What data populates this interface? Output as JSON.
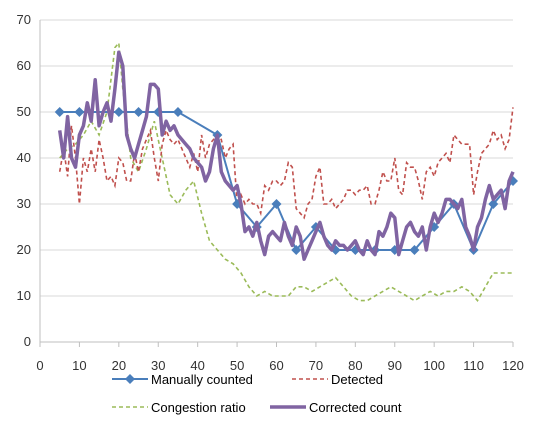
{
  "chart_data": {
    "type": "line",
    "title": "",
    "xlabel": "",
    "ylabel": "",
    "xlim": [
      0,
      120
    ],
    "ylim": [
      0,
      70
    ],
    "x_ticks": [
      0,
      10,
      20,
      30,
      40,
      50,
      60,
      70,
      80,
      90,
      100,
      110,
      120
    ],
    "y_ticks": [
      0,
      10,
      20,
      30,
      40,
      50,
      60,
      70
    ],
    "grid": "horizontal",
    "legend_position": "bottom",
    "series": [
      {
        "name": "Manually counted",
        "color": "#4A7EBB",
        "style": "solid-marker",
        "x": [
          5,
          10,
          20,
          25,
          30,
          35,
          45,
          50,
          55,
          60,
          65,
          70,
          75,
          80,
          85,
          90,
          95,
          100,
          105,
          110,
          115,
          120
        ],
        "y": [
          50,
          50,
          50,
          50,
          50,
          50,
          45,
          30,
          25,
          30,
          20,
          25,
          20,
          20,
          20,
          20,
          20,
          25,
          30,
          20,
          30,
          35
        ]
      },
      {
        "name": "Detected",
        "color": "#C0504D",
        "style": "dashed",
        "x": [
          5,
          6,
          7,
          8,
          9,
          10,
          11,
          12,
          13,
          14,
          15,
          16,
          17,
          18,
          19,
          20,
          21,
          22,
          23,
          24,
          25,
          26,
          27,
          28,
          29,
          30,
          31,
          32,
          33,
          34,
          35,
          36,
          37,
          38,
          39,
          40,
          41,
          42,
          43,
          44,
          45,
          46,
          47,
          48,
          49,
          50,
          51,
          52,
          53,
          54,
          55,
          56,
          57,
          58,
          59,
          60,
          61,
          62,
          63,
          64,
          65,
          66,
          67,
          68,
          69,
          70,
          71,
          72,
          73,
          74,
          75,
          76,
          77,
          78,
          79,
          80,
          81,
          82,
          83,
          84,
          85,
          86,
          87,
          88,
          89,
          90,
          91,
          92,
          93,
          94,
          95,
          96,
          97,
          98,
          99,
          100,
          101,
          102,
          103,
          104,
          105,
          106,
          107,
          108,
          109,
          110,
          111,
          112,
          113,
          114,
          115,
          116,
          117,
          118,
          119,
          120
        ],
        "y": [
          37,
          42,
          36,
          47,
          40,
          30,
          40,
          37,
          42,
          37,
          44,
          40,
          35,
          36,
          34,
          40,
          39,
          35,
          35,
          41,
          37,
          42,
          44,
          46,
          40,
          35,
          43,
          46,
          44,
          43,
          44,
          42,
          40,
          38,
          41,
          37,
          45,
          40,
          43,
          44,
          45,
          44,
          40,
          42,
          43,
          30,
          32,
          30,
          31,
          30,
          30,
          28,
          34,
          33,
          35,
          35,
          34,
          35,
          39,
          38,
          29,
          28,
          27,
          30,
          31,
          36,
          38,
          30,
          30,
          31,
          29,
          30,
          31,
          33,
          33,
          32,
          33,
          33,
          34,
          30,
          30,
          33,
          37,
          35,
          35,
          40,
          33,
          32,
          39,
          38,
          38,
          35,
          31,
          37,
          38,
          36,
          39,
          40,
          41,
          39,
          45,
          44,
          43,
          43,
          43,
          32,
          37,
          41,
          42,
          43,
          46,
          44,
          45,
          42,
          44,
          51
        ]
      },
      {
        "name": "Congestion ratio",
        "color": "#9BBB59",
        "style": "dashed",
        "x": [
          5,
          7,
          9,
          11,
          13,
          15,
          17,
          19,
          20,
          21,
          23,
          25,
          27,
          29,
          31,
          33,
          35,
          37,
          39,
          41,
          43,
          45,
          47,
          49,
          51,
          53,
          55,
          57,
          59,
          61,
          63,
          65,
          67,
          69,
          71,
          73,
          75,
          77,
          79,
          81,
          83,
          85,
          87,
          89,
          91,
          93,
          95,
          97,
          99,
          101,
          103,
          105,
          107,
          109,
          111,
          113,
          115,
          117,
          119,
          120
        ],
        "y": [
          40,
          42,
          43,
          45,
          48,
          45,
          50,
          64,
          65,
          55,
          40,
          37,
          42,
          48,
          40,
          32,
          30,
          33,
          35,
          28,
          22,
          20,
          18,
          17,
          15,
          12,
          10,
          11,
          10,
          10,
          10,
          12,
          12,
          11,
          12,
          13,
          14,
          12,
          10,
          9,
          9,
          10,
          11,
          12,
          11,
          10,
          9,
          10,
          11,
          10,
          11,
          11,
          12,
          11,
          9,
          12,
          15,
          15,
          15,
          15
        ]
      },
      {
        "name": "Corrected count",
        "color": "#8064A2",
        "style": "thick",
        "x": [
          5,
          6,
          7,
          8,
          9,
          10,
          11,
          12,
          13,
          14,
          15,
          16,
          17,
          18,
          19,
          20,
          21,
          22,
          23,
          24,
          25,
          26,
          27,
          28,
          29,
          30,
          31,
          32,
          33,
          34,
          35,
          36,
          37,
          38,
          39,
          40,
          41,
          42,
          43,
          44,
          45,
          46,
          47,
          48,
          49,
          50,
          51,
          52,
          53,
          54,
          55,
          56,
          57,
          58,
          59,
          60,
          61,
          62,
          63,
          64,
          65,
          66,
          67,
          68,
          69,
          70,
          71,
          72,
          73,
          74,
          75,
          76,
          77,
          78,
          79,
          80,
          81,
          82,
          83,
          84,
          85,
          86,
          87,
          88,
          89,
          90,
          91,
          92,
          93,
          94,
          95,
          96,
          97,
          98,
          99,
          100,
          101,
          102,
          103,
          104,
          105,
          106,
          107,
          108,
          109,
          110,
          111,
          112,
          113,
          114,
          115,
          116,
          117,
          118,
          119,
          120
        ],
        "y": [
          46,
          40,
          49,
          40,
          38,
          45,
          47,
          52,
          48,
          57,
          47,
          50,
          52,
          48,
          55,
          63,
          60,
          45,
          42,
          40,
          43,
          46,
          49,
          56,
          56,
          55,
          45,
          48,
          46,
          47,
          45,
          44,
          43,
          42,
          40,
          39,
          38,
          35,
          37,
          42,
          45,
          37,
          35,
          34,
          33,
          34,
          30,
          24,
          25,
          23,
          26,
          22,
          19,
          23,
          24,
          23,
          22,
          26,
          23,
          21,
          25,
          23,
          18,
          20,
          22,
          24,
          26,
          23,
          21,
          20,
          22,
          21,
          21,
          20,
          21,
          22,
          20,
          19,
          22,
          20,
          19,
          24,
          23,
          25,
          28,
          27,
          19,
          22,
          25,
          26,
          24,
          23,
          25,
          20,
          25,
          28,
          26,
          28,
          31,
          31,
          30,
          29,
          31,
          25,
          23,
          20,
          25,
          27,
          31,
          34,
          31,
          32,
          33,
          29,
          35,
          37
        ]
      }
    ]
  }
}
